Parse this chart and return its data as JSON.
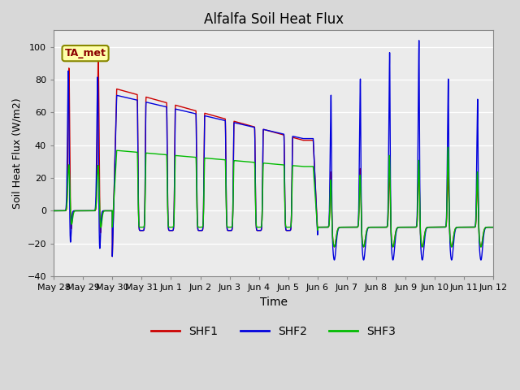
{
  "title": "Alfalfa Soil Heat Flux",
  "xlabel": "Time",
  "ylabel": "Soil Heat Flux (W/m2)",
  "ylim": [
    -40,
    110
  ],
  "annotation_text": "TA_met",
  "legend_labels": [
    "SHF1",
    "SHF2",
    "SHF3"
  ],
  "colors": {
    "SHF1": "#cc0000",
    "SHF2": "#0000dd",
    "SHF3": "#00bb00"
  },
  "background_color": "#d8d8d8",
  "axes_background": "#ebebeb",
  "grid_color": "#ffffff",
  "x_tick_labels": [
    "May 28",
    "May 29",
    "May 30",
    "May 31",
    "Jun 1",
    "Jun 2",
    "Jun 3",
    "Jun 4",
    "Jun 5",
    "Jun 6",
    "Jun 7",
    "Jun 8",
    "Jun 9",
    "Jun 10",
    "Jun 11",
    "Jun 12"
  ],
  "num_days": 15
}
